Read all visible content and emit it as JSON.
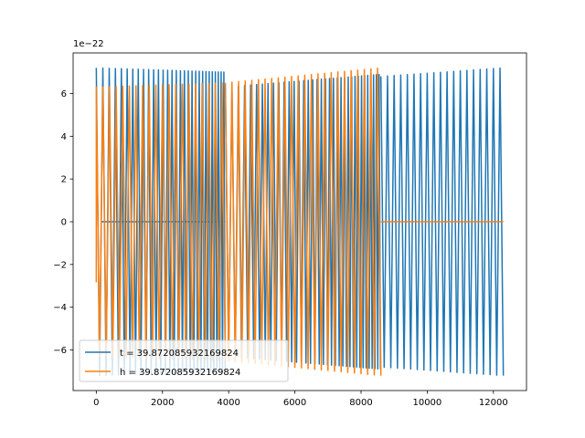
{
  "chart_data": {
    "type": "line",
    "title": "",
    "xlabel": "",
    "ylabel": "",
    "xlim": [
      -700,
      13000
    ],
    "ylim": [
      -7.9,
      7.9
    ],
    "xticks": [
      0,
      2000,
      4000,
      6000,
      8000,
      10000,
      12000
    ],
    "yticks": [
      -6,
      -4,
      -2,
      0,
      2,
      4,
      6
    ],
    "xtick_labels": [
      "0",
      "2000",
      "4000",
      "6000",
      "8000",
      "10000",
      "12000"
    ],
    "ytick_labels": [
      "−6",
      "−4",
      "−2",
      "0",
      "2",
      "4",
      "6"
    ],
    "y_offset_label": "1e−22",
    "grid": false,
    "legend_position": "lower-left",
    "series": [
      {
        "name": "t = 39.872085932169824",
        "color": "#1f77b4",
        "segments": [
          {
            "start": 0,
            "end": 3900,
            "form": "chirp",
            "amp_start": 7.2,
            "amp_end": 7.0,
            "half_period_start": 100,
            "half_period_end": 40,
            "zero_line": true
          },
          {
            "start": 3900,
            "end": 8600,
            "form": "chirp",
            "amp_start": 6.3,
            "amp_end": 6.9,
            "half_period_start": 100,
            "half_period_end": 40
          },
          {
            "start": 8600,
            "end": 12300,
            "form": "chirp",
            "amp_start": 6.8,
            "amp_end": 7.2,
            "half_period_start": 100,
            "half_period_end": 100
          }
        ]
      },
      {
        "name": "h = 39.872085932169824",
        "color": "#ff7f0e",
        "segments": [
          {
            "start": 0,
            "end": 3900,
            "form": "chirp",
            "amp_start": 6.3,
            "amp_end": 6.5,
            "half_period_start": 100,
            "half_period_end": 100,
            "lead_in": true
          },
          {
            "start": 3900,
            "end": 8600,
            "form": "chirp",
            "amp_start": 6.5,
            "amp_end": 7.2,
            "half_period_start": 100,
            "half_period_end": 100
          },
          {
            "start": 8600,
            "end": 12300,
            "form": "flat",
            "value": 0
          }
        ]
      }
    ]
  }
}
